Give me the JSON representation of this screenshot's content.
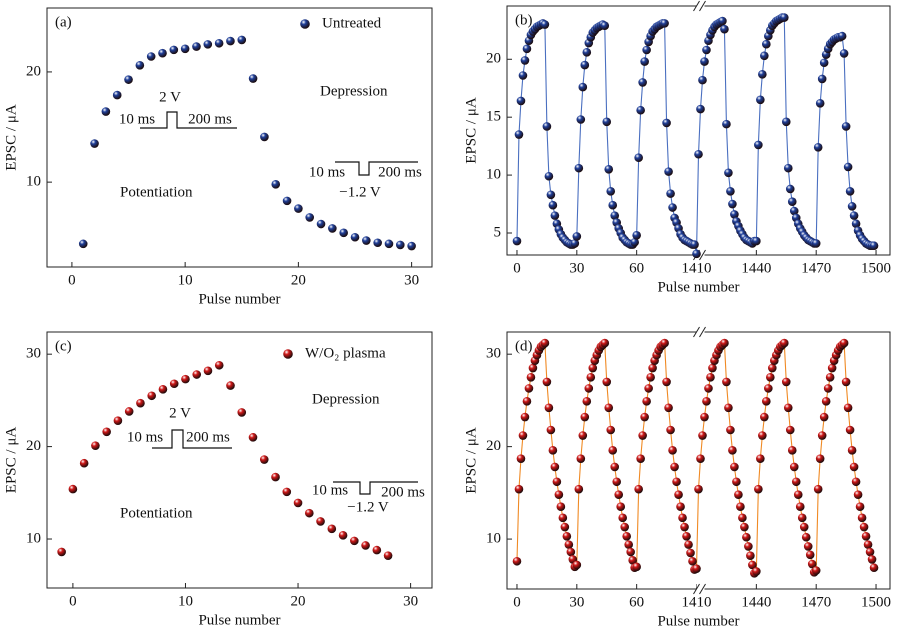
{
  "chart_data": [
    {
      "type": "scatter",
      "panel_label": "(a)",
      "xlabel": "Pulse number",
      "ylabel": "EPSC / μA",
      "xlim": [
        -2.2,
        31.8
      ],
      "ylim": [
        2.3,
        25.8
      ],
      "xticks": [
        0,
        10,
        20,
        30
      ],
      "yticks": [
        10,
        20
      ],
      "x": [
        1,
        2,
        3,
        4,
        5,
        6,
        7,
        8,
        9,
        10,
        11,
        12,
        13,
        14,
        15,
        16,
        17,
        18,
        19,
        20,
        21,
        22,
        23,
        24,
        25,
        26,
        27,
        28,
        29,
        30
      ],
      "series": [
        {
          "name": "Untreated",
          "color": "#1f3f9a",
          "values": [
            4.4,
            13.5,
            16.4,
            17.9,
            19.3,
            20.6,
            21.4,
            21.7,
            22.0,
            22.1,
            22.3,
            22.5,
            22.6,
            22.8,
            22.9,
            19.4,
            14.1,
            9.8,
            8.3,
            7.6,
            6.8,
            6.2,
            5.8,
            5.4,
            5.0,
            4.7,
            4.5,
            4.4,
            4.3,
            4.2
          ]
        }
      ],
      "annotations": [
        "2 V",
        "10 ms",
        "200 ms",
        "Depression",
        "10 ms",
        "200 ms",
        "−1.2 V",
        "Potentiation"
      ]
    },
    {
      "type": "line",
      "panel_label": "(b)",
      "xlabel": "Pulse number",
      "ylabel": "EPSC / μA",
      "xlim": [
        -5,
        1507
      ],
      "x_break": [
        90,
        1410
      ],
      "ylim": [
        3.1,
        24.6
      ],
      "xticks": [
        0,
        30,
        60,
        1410,
        1440,
        1470,
        1500
      ],
      "yticks": [
        5,
        10,
        15,
        20
      ],
      "line_color": "#4a6fc0",
      "x": [
        0,
        1,
        2,
        3,
        4,
        5,
        6,
        7,
        8,
        9,
        10,
        11,
        12,
        13,
        14,
        15,
        16,
        17,
        18,
        19,
        20,
        21,
        22,
        23,
        24,
        25,
        26,
        27,
        28,
        29,
        30,
        31,
        32,
        33,
        34,
        35,
        36,
        37,
        38,
        39,
        40,
        41,
        42,
        43,
        44,
        45,
        46,
        47,
        48,
        49,
        50,
        51,
        52,
        53,
        54,
        55,
        56,
        57,
        58,
        59,
        60,
        61,
        62,
        63,
        64,
        65,
        66,
        67,
        68,
        69,
        70,
        71,
        72,
        73,
        74,
        75,
        76,
        77,
        78,
        79,
        80,
        81,
        82,
        83,
        84,
        85,
        86,
        87,
        88,
        89,
        1410,
        1411,
        1412,
        1413,
        1414,
        1415,
        1416,
        1417,
        1418,
        1419,
        1420,
        1421,
        1422,
        1423,
        1424,
        1425,
        1426,
        1427,
        1428,
        1429,
        1430,
        1431,
        1432,
        1433,
        1434,
        1435,
        1436,
        1437,
        1438,
        1439,
        1440,
        1441,
        1442,
        1443,
        1444,
        1445,
        1446,
        1447,
        1448,
        1449,
        1450,
        1451,
        1452,
        1453,
        1454,
        1455,
        1456,
        1457,
        1458,
        1459,
        1460,
        1461,
        1462,
        1463,
        1464,
        1465,
        1466,
        1467,
        1468,
        1469,
        1470,
        1471,
        1472,
        1473,
        1474,
        1475,
        1476,
        1477,
        1478,
        1479,
        1480,
        1481,
        1482,
        1483,
        1484,
        1485,
        1486,
        1487,
        1488,
        1489,
        1490,
        1491,
        1492,
        1493,
        1494,
        1495,
        1496,
        1497,
        1498,
        1499
      ],
      "series": [
        {
          "color": "#1f3f9a",
          "values": [
            4.3,
            13.5,
            16.4,
            18.6,
            19.9,
            20.9,
            21.6,
            22.1,
            22.4,
            22.6,
            22.8,
            22.9,
            23.0,
            23.1,
            23.0,
            14.2,
            9.9,
            8.3,
            7.4,
            6.5,
            5.8,
            5.3,
            4.9,
            4.6,
            4.4,
            4.2,
            4.1,
            4.0,
            4.0,
            4.1,
            4.7,
            10.6,
            14.8,
            17.6,
            19.5,
            20.6,
            21.4,
            21.9,
            22.3,
            22.5,
            22.7,
            22.8,
            22.9,
            23.0,
            22.9,
            14.6,
            10.5,
            8.6,
            7.4,
            6.5,
            5.9,
            5.4,
            5.0,
            4.6,
            4.4,
            4.2,
            4.1,
            4.0,
            4.0,
            4.2,
            4.8,
            11.5,
            15.6,
            18.0,
            19.8,
            20.8,
            21.5,
            22.0,
            22.4,
            22.6,
            22.8,
            22.9,
            23.0,
            23.1,
            23.1,
            14.5,
            10.3,
            8.4,
            7.2,
            6.3,
            5.9,
            5.4,
            4.9,
            4.6,
            4.4,
            4.3,
            4.2,
            4.1,
            4.0,
            4.0,
            3.2,
            11.8,
            15.7,
            18.2,
            19.8,
            20.8,
            21.6,
            22.1,
            22.5,
            22.8,
            23.0,
            23.1,
            23.2,
            23.3,
            22.6,
            14.4,
            10.2,
            8.6,
            7.5,
            6.6,
            6.0,
            5.6,
            5.2,
            4.9,
            4.6,
            4.4,
            4.3,
            4.2,
            4.1,
            4.3,
            4.3,
            12.6,
            16.5,
            18.7,
            20.3,
            21.3,
            22.0,
            22.5,
            22.9,
            23.1,
            23.3,
            23.4,
            23.5,
            23.6,
            23.6,
            14.6,
            10.6,
            8.8,
            7.7,
            6.9,
            6.3,
            5.8,
            5.4,
            5.1,
            4.8,
            4.6,
            4.4,
            4.3,
            4.2,
            4.1,
            4.1,
            12.4,
            16.2,
            18.3,
            19.7,
            20.4,
            20.9,
            21.3,
            21.5,
            21.7,
            21.8,
            21.9,
            21.9,
            22.0,
            20.5,
            14.2,
            10.7,
            8.6,
            7.3,
            6.5,
            5.8,
            5.2,
            4.8,
            4.5,
            4.3,
            4.1,
            4.0,
            3.9,
            3.9,
            3.9
          ]
        }
      ]
    },
    {
      "type": "scatter",
      "panel_label": "(c)",
      "xlabel": "Pulse number",
      "ylabel": "EPSC / μA",
      "xlim": [
        -2.3,
        31.9
      ],
      "ylim": [
        4.7,
        32.4
      ],
      "xticks": [
        0,
        10,
        20,
        30
      ],
      "yticks": [
        10,
        20,
        30
      ],
      "x": [
        -1,
        0,
        1,
        2,
        3,
        4,
        5,
        6,
        7,
        8,
        9,
        10,
        11,
        12,
        13,
        14,
        15,
        16,
        17,
        18,
        19,
        20,
        21,
        22,
        23,
        24,
        25,
        26,
        27,
        28
      ],
      "series": [
        {
          "name": "W/O₂ plasma",
          "color": "#d01818",
          "values": [
            8.6,
            15.4,
            18.2,
            20.1,
            21.6,
            22.8,
            23.8,
            24.7,
            25.5,
            26.2,
            26.8,
            27.3,
            27.8,
            28.2,
            28.8,
            26.6,
            23.7,
            21.0,
            18.6,
            16.7,
            15.1,
            13.9,
            12.8,
            11.9,
            11.1,
            10.4,
            9.8,
            9.3,
            8.8,
            8.2
          ]
        }
      ],
      "annotations": [
        "2 V",
        "10 ms",
        "200 ms",
        "Depression",
        "10 ms",
        "200 ms",
        "−1.2 V",
        "Potentiation"
      ]
    },
    {
      "type": "line",
      "panel_label": "(d)",
      "xlabel": "Pulse number",
      "ylabel": "EPSC / μA",
      "xlim": [
        -5,
        1507
      ],
      "x_break": [
        90,
        1410
      ],
      "ylim": [
        4.6,
        32.4
      ],
      "xticks": [
        0,
        30,
        60,
        1410,
        1440,
        1470,
        1500
      ],
      "yticks": [
        10,
        20,
        30
      ],
      "line_color": "#f08a24",
      "x": [
        0,
        1,
        2,
        3,
        4,
        5,
        6,
        7,
        8,
        9,
        10,
        11,
        12,
        13,
        14,
        15,
        16,
        17,
        18,
        19,
        20,
        21,
        22,
        23,
        24,
        25,
        26,
        27,
        28,
        29,
        30,
        31,
        32,
        33,
        34,
        35,
        36,
        37,
        38,
        39,
        40,
        41,
        42,
        43,
        44,
        45,
        46,
        47,
        48,
        49,
        50,
        51,
        52,
        53,
        54,
        55,
        56,
        57,
        58,
        59,
        60,
        61,
        62,
        63,
        64,
        65,
        66,
        67,
        68,
        69,
        70,
        71,
        72,
        73,
        74,
        75,
        76,
        77,
        78,
        79,
        80,
        81,
        82,
        83,
        84,
        85,
        86,
        87,
        88,
        89,
        1410,
        1411,
        1412,
        1413,
        1414,
        1415,
        1416,
        1417,
        1418,
        1419,
        1420,
        1421,
        1422,
        1423,
        1424,
        1425,
        1426,
        1427,
        1428,
        1429,
        1430,
        1431,
        1432,
        1433,
        1434,
        1435,
        1436,
        1437,
        1438,
        1439,
        1440,
        1441,
        1442,
        1443,
        1444,
        1445,
        1446,
        1447,
        1448,
        1449,
        1450,
        1451,
        1452,
        1453,
        1454,
        1455,
        1456,
        1457,
        1458,
        1459,
        1460,
        1461,
        1462,
        1463,
        1464,
        1465,
        1466,
        1467,
        1468,
        1469,
        1470,
        1471,
        1472,
        1473,
        1474,
        1475,
        1476,
        1477,
        1478,
        1479,
        1480,
        1481,
        1482,
        1483,
        1484,
        1485,
        1486,
        1487,
        1488,
        1489,
        1490,
        1491,
        1492,
        1493,
        1494,
        1495,
        1496,
        1497,
        1498,
        1499
      ],
      "series": [
        {
          "color": "#d01818",
          "values": [
            7.6,
            15.4,
            18.7,
            21.2,
            23.2,
            24.9,
            26.3,
            27.5,
            28.5,
            29.3,
            29.9,
            30.4,
            30.8,
            31.0,
            31.2,
            27.0,
            24.2,
            21.8,
            19.6,
            17.8,
            16.2,
            14.8,
            13.5,
            12.3,
            11.3,
            10.3,
            9.4,
            8.6,
            7.8,
            7.0,
            7.2,
            15.4,
            18.7,
            21.2,
            23.2,
            24.9,
            26.3,
            27.5,
            28.5,
            29.3,
            29.9,
            30.4,
            30.8,
            31.0,
            31.2,
            27.0,
            24.2,
            21.8,
            19.6,
            17.8,
            16.2,
            14.8,
            13.5,
            12.3,
            11.3,
            10.3,
            9.4,
            8.6,
            7.7,
            6.9,
            7.0,
            15.4,
            18.7,
            21.2,
            23.2,
            24.9,
            26.3,
            27.5,
            28.5,
            29.3,
            29.9,
            30.4,
            30.8,
            31.0,
            31.2,
            27.0,
            24.2,
            21.8,
            19.6,
            17.8,
            16.2,
            14.8,
            13.5,
            12.3,
            11.3,
            10.3,
            9.4,
            8.5,
            7.6,
            6.7,
            6.8,
            15.4,
            18.7,
            21.2,
            23.2,
            24.9,
            26.3,
            27.5,
            28.5,
            29.3,
            29.9,
            30.4,
            30.8,
            31.0,
            31.2,
            27.0,
            24.2,
            21.8,
            19.6,
            17.8,
            16.2,
            14.8,
            13.5,
            12.3,
            11.3,
            10.2,
            9.2,
            8.2,
            7.2,
            6.3,
            6.5,
            15.4,
            18.7,
            21.2,
            23.2,
            24.9,
            26.3,
            27.5,
            28.5,
            29.3,
            29.9,
            30.4,
            30.8,
            31.0,
            31.2,
            27.0,
            24.2,
            21.8,
            19.6,
            17.8,
            16.2,
            14.8,
            13.5,
            12.3,
            11.3,
            10.2,
            9.2,
            8.3,
            7.3,
            6.4,
            6.6,
            15.4,
            18.7,
            21.2,
            23.2,
            24.9,
            26.3,
            27.5,
            28.5,
            29.3,
            29.9,
            30.4,
            30.8,
            31.0,
            31.2,
            27.0,
            24.2,
            21.8,
            19.6,
            17.8,
            16.2,
            14.8,
            13.5,
            12.3,
            11.3,
            10.3,
            9.4,
            8.6,
            7.8,
            6.9
          ]
        }
      ]
    }
  ]
}
